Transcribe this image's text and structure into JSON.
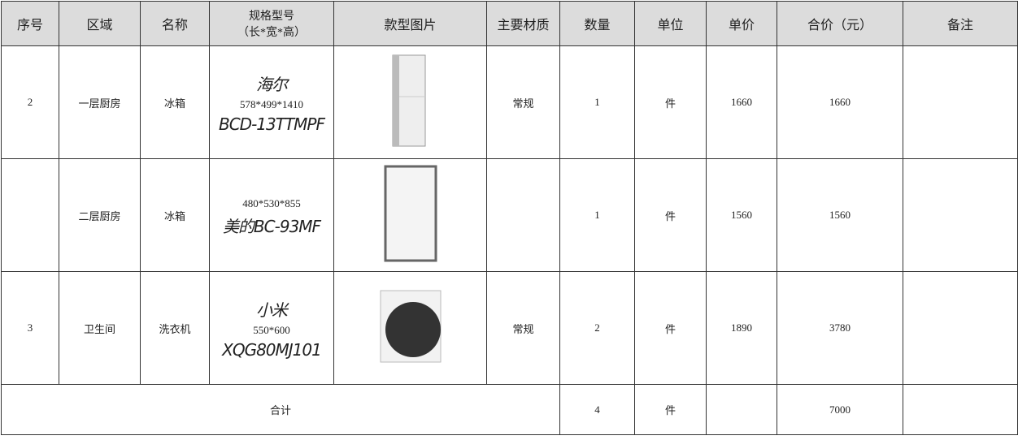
{
  "header": [
    "序号",
    "区域",
    "名称",
    [
      "规格型号",
      "（长*宽*高）"
    ],
    "款型图片",
    "主要材质",
    "数量",
    "单位",
    "单价",
    "合价（元）",
    "备注"
  ],
  "rows": [
    {
      "no": "2",
      "area": "一层厨房",
      "name": "冰箱",
      "brand": "海尔",
      "spec": "578*499*1410",
      "model": "BCD-13TTMPF",
      "material": "常规",
      "qty": 1,
      "unit": "件",
      "price": 1660,
      "total": 1660
    },
    {
      "area": "二层厨房",
      "name": "冰箱",
      "spec": "480*530*855",
      "model": "美的BC-93MF",
      "qty": 1,
      "unit": "件",
      "price": 1560,
      "total": 1560
    },
    {
      "no": "3",
      "area": "卫生间",
      "name": "洗衣机",
      "brand": "小米",
      "spec": "550*600",
      "model": "XQG80MJ101",
      "material": "常规",
      "qty": 2,
      "unit": "件",
      "price": 1890,
      "total": 3780
    }
  ],
  "summary": {
    "label": "合计",
    "qty": 4,
    "unit": "件",
    "total": 7000
  }
}
